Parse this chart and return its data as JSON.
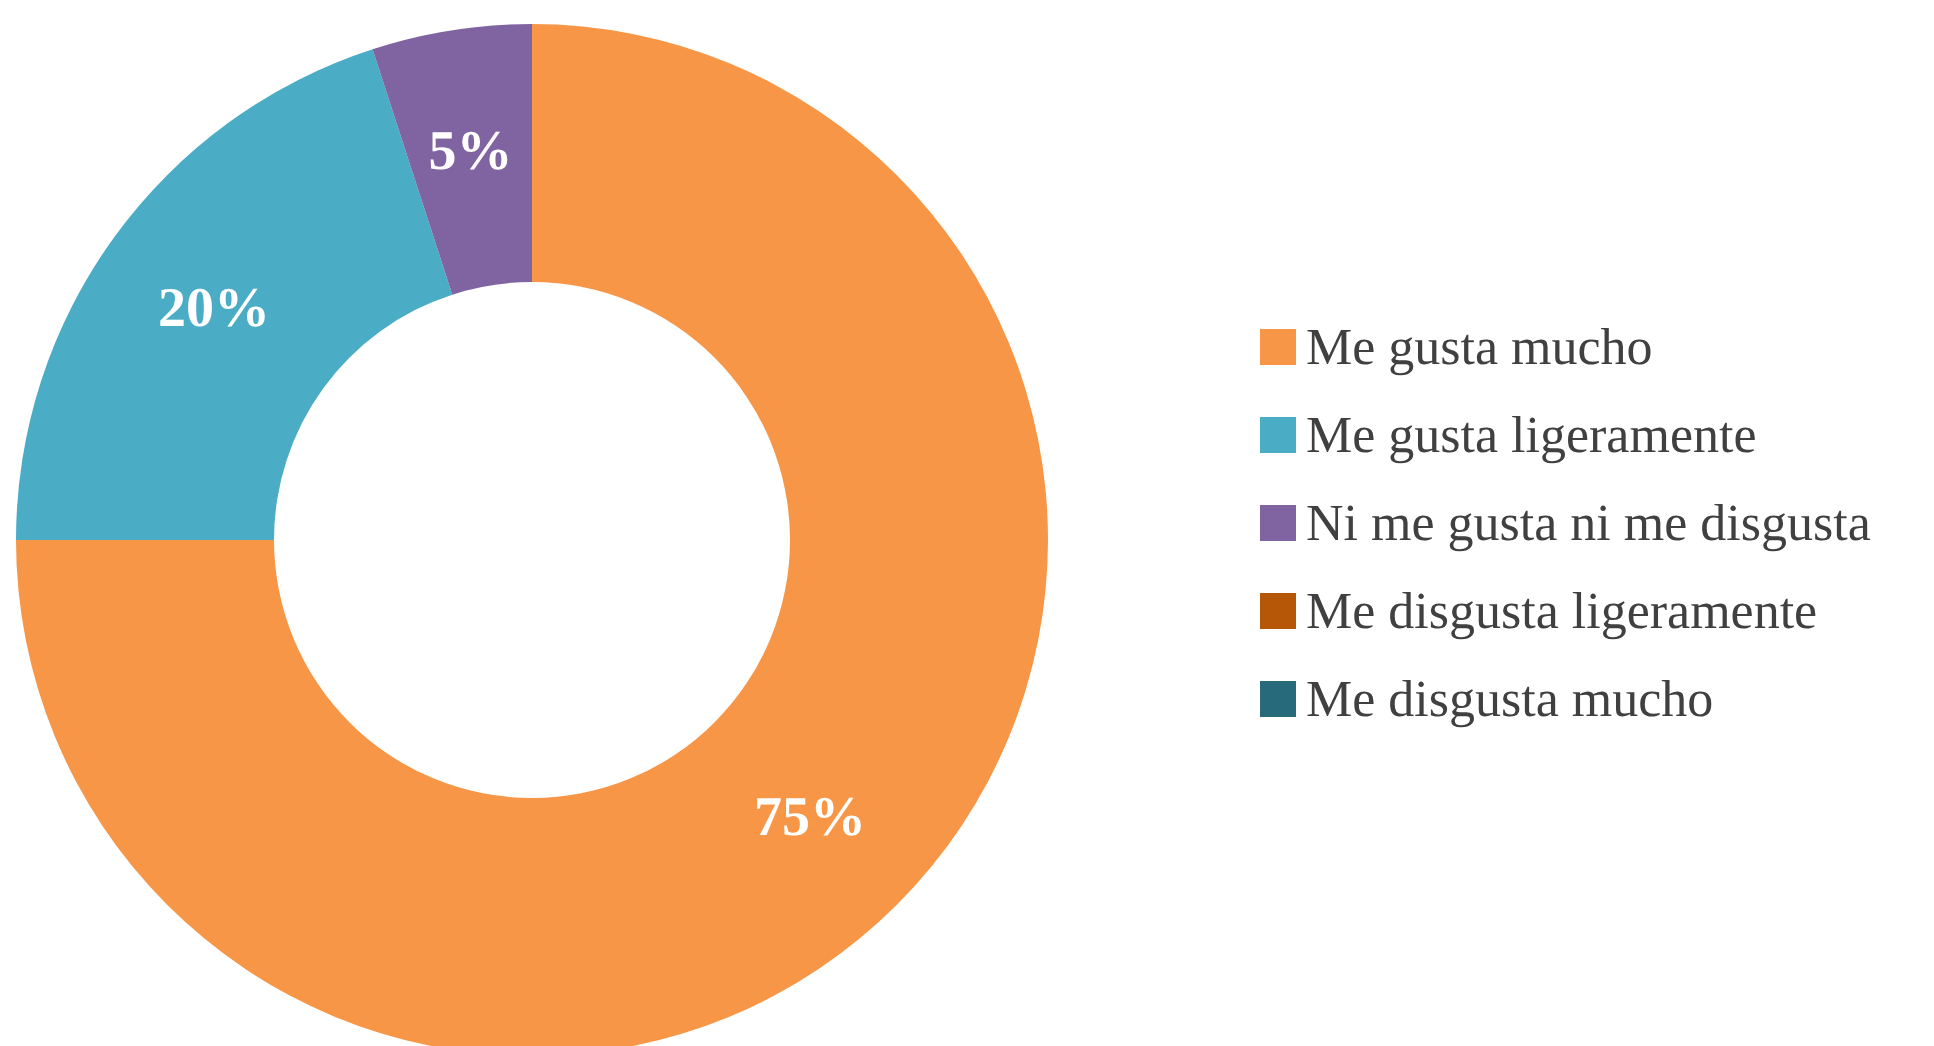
{
  "chart_data": {
    "type": "donut",
    "categories": [
      "Me gusta mucho",
      "Me gusta ligeramente",
      "Ni me gusta ni me disgusta",
      "Me disgusta ligeramente",
      "Me disgusta mucho"
    ],
    "values": [
      75,
      20,
      5,
      0,
      0
    ],
    "value_labels": [
      "75%",
      "20%",
      "5%",
      null,
      null
    ],
    "colors": [
      "#f79646",
      "#4bacc6",
      "#8064a2",
      "#b65708",
      "#276a7c"
    ],
    "legend": "right"
  }
}
